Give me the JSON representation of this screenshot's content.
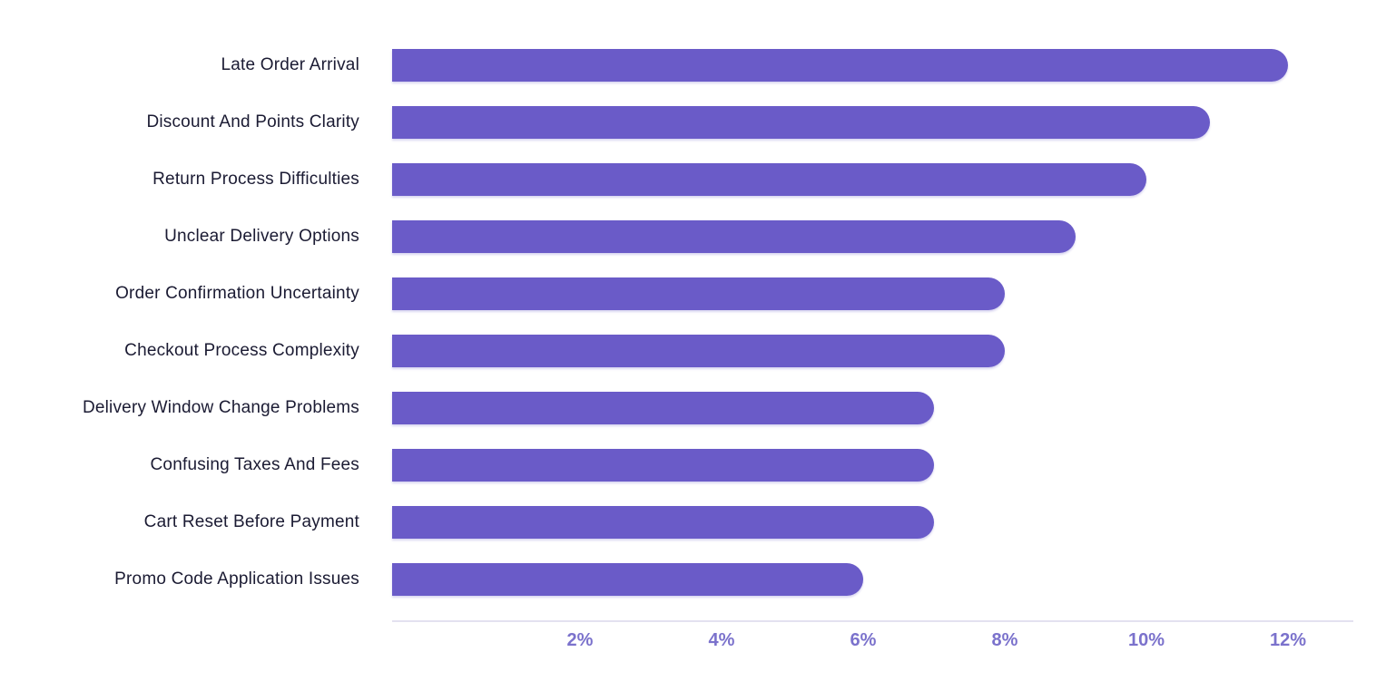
{
  "chart_data": {
    "type": "bar",
    "orientation": "horizontal",
    "categories": [
      "Late Order Arrival",
      "Discount And Points Clarity",
      "Return Process Difficulties",
      "Unclear Delivery Options",
      "Order Confirmation Uncertainty",
      "Checkout Process Complexity",
      "Delivery Window Change Problems",
      "Confusing Taxes And Fees",
      "Cart Reset Before Payment",
      "Promo Code Application Issues"
    ],
    "values": [
      12,
      10.9,
      10,
      9,
      8,
      8,
      7,
      7,
      7,
      6
    ],
    "value_unit": "%",
    "x_ticks": [
      "2%",
      "4%",
      "6%",
      "8%",
      "10%",
      "12%"
    ],
    "x_tick_values": [
      2,
      4,
      6,
      8,
      10,
      12
    ],
    "xlim": [
      -0.65,
      12.9
    ],
    "grid": false,
    "legend": false,
    "title": "",
    "xlabel": "",
    "ylabel": "",
    "colors": {
      "bar_fill": "#6a5bc8",
      "tick_label": "#7b72cc",
      "category_label": "#1b1b33",
      "axis_line": "#e3e1f0",
      "background": "#ffffff"
    }
  }
}
